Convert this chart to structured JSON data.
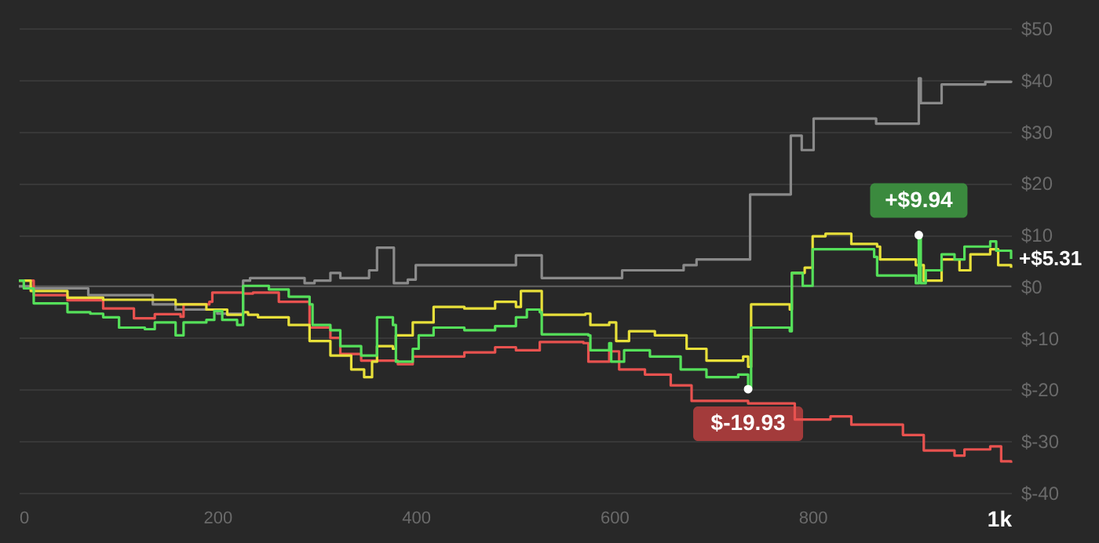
{
  "chart_data": {
    "type": "step",
    "xlim": [
      0,
      1000
    ],
    "ylim": [
      -40,
      50
    ],
    "xticks": [
      0,
      200,
      400,
      600,
      800,
      {
        "value": 1000,
        "label": "1k"
      }
    ],
    "yticks": [
      {
        "value": -40,
        "label": "$-40"
      },
      {
        "value": -30,
        "label": "$-30"
      },
      {
        "value": -20,
        "label": "$-20"
      },
      {
        "value": -10,
        "label": "$-10"
      },
      {
        "value": 0,
        "label": "$0"
      },
      {
        "value": 10,
        "label": "$10"
      },
      {
        "value": 20,
        "label": "$20"
      },
      {
        "value": 30,
        "label": "$30"
      },
      {
        "value": 40,
        "label": "$40"
      },
      {
        "value": 50,
        "label": "$50"
      }
    ],
    "grid": "y",
    "marker": "none",
    "line_style": "solid",
    "ref_lines": [
      {
        "axis": "y",
        "value": 0,
        "color": "#5a5a5a"
      }
    ],
    "series": [
      {
        "color": "#8a8a8a",
        "x": [
          0,
          12,
          70,
          135,
          158,
          200,
          226,
          233,
          288,
          298,
          314,
          324,
          353,
          361,
          378,
          392,
          400,
          501,
          527,
          608,
          670,
          683,
          737,
          778,
          789,
          801,
          864,
          907,
          909,
          930,
          974,
          1000
        ],
        "values": [
          0,
          -0.4,
          -1.7,
          -3.5,
          -4.5,
          -5.3,
          1.1,
          1.6,
          0.6,
          1.1,
          2.6,
          1.6,
          3.1,
          7.5,
          0.6,
          1.3,
          4.1,
          6.0,
          1.6,
          3.1,
          4.1,
          5.2,
          17.8,
          29.2,
          26.4,
          32.5,
          31.5,
          40.3,
          35.5,
          39.1,
          39.6,
          39.8
        ]
      },
      {
        "color": "#e8524f",
        "x": [
          0,
          15,
          49,
          85,
          116,
          137,
          163,
          166,
          192,
          195,
          226,
          236,
          262,
          293,
          314,
          324,
          345,
          382,
          397,
          449,
          480,
          501,
          525,
          569,
          574,
          595,
          605,
          631,
          657,
          678,
          735,
          782,
          818,
          839,
          891,
          912,
          943,
          953,
          979,
          990,
          1000
        ],
        "values": [
          1.1,
          -1.7,
          -2.7,
          -4.3,
          -6.2,
          -5.4,
          -5.9,
          -3.5,
          -3,
          -1.2,
          -1.4,
          -1.2,
          -3,
          -8,
          -10,
          -13.1,
          -14.4,
          -15.1,
          -13.6,
          -12.8,
          -11.8,
          -12.4,
          -10.8,
          -11,
          -14.6,
          -12.6,
          -16.1,
          -17.1,
          -19.2,
          -22.2,
          -22.7,
          -25.8,
          -25.2,
          -26.8,
          -28.8,
          -31.8,
          -32.8,
          -31.6,
          -31,
          -33.9,
          -34.2
        ]
      },
      {
        "color": "#e8e03a",
        "x": [
          0,
          12,
          49,
          85,
          158,
          189,
          210,
          226,
          231,
          241,
          272,
          293,
          314,
          335,
          348,
          356,
          361,
          377,
          380,
          397,
          418,
          449,
          480,
          501,
          506,
          522,
          527,
          571,
          576,
          595,
          602,
          615,
          641,
          673,
          693,
          730,
          735,
          738,
          777,
          779,
          792,
          800,
          813,
          839,
          865,
          868,
          904,
          912,
          930,
          948,
          959,
          979,
          987,
          1000
        ],
        "values": [
          1.1,
          -0.9,
          -2.2,
          -2.6,
          -3.5,
          -4.5,
          -5.5,
          -5,
          -5.5,
          -6,
          -7.5,
          -10.6,
          -13.4,
          -16.1,
          -17.6,
          -14.6,
          -11.6,
          -12.1,
          -9.5,
          -7,
          -4,
          -4.3,
          -3,
          -4,
          -0.9,
          -0.9,
          -5.5,
          -5.3,
          -7.5,
          -7,
          -10.6,
          -8.7,
          -9.5,
          -12.1,
          -14.4,
          -13.6,
          -15.6,
          -3.5,
          -4.5,
          2.6,
          3.6,
          9.7,
          10.2,
          8.2,
          7.7,
          5.2,
          4.1,
          1.1,
          5.2,
          3.1,
          6.2,
          7.2,
          4.1,
          3.6
        ]
      },
      {
        "color": "#55e05a",
        "x": [
          0,
          5,
          15,
          49,
          72,
          85,
          101,
          127,
          137,
          158,
          166,
          189,
          197,
          205,
          220,
          226,
          252,
          272,
          293,
          296,
          314,
          324,
          345,
          361,
          377,
          380,
          397,
          403,
          418,
          449,
          480,
          501,
          512,
          525,
          527,
          574,
          576,
          595,
          597,
          610,
          636,
          667,
          693,
          725,
          735,
          738,
          777,
          779,
          790,
          800,
          818,
          862,
          865,
          904,
          907,
          909,
          914,
          930,
          943,
          953,
          979,
          985,
          1000
        ],
        "values": [
          1.1,
          -0.4,
          -3.3,
          -5,
          -5.3,
          -6,
          -8,
          -8.3,
          -7,
          -9.5,
          -7,
          -6.5,
          -4.8,
          -6.5,
          -7.5,
          0.1,
          -0.6,
          -2,
          -3.5,
          -7.5,
          -8.5,
          -11.6,
          -13.4,
          -6,
          -7.5,
          -14.6,
          -12.1,
          -9.5,
          -8,
          -8.5,
          -7.7,
          -6,
          -4.5,
          -5,
          -9.3,
          -9.5,
          -12.4,
          -11,
          -14.6,
          -12.4,
          -13.6,
          -16.1,
          -17.6,
          -17.1,
          -19.93,
          -8,
          -8.7,
          2.6,
          0.1,
          7.2,
          7.2,
          5.7,
          2.1,
          0.6,
          9.94,
          0.6,
          3.1,
          6.2,
          5.2,
          7.7,
          8.7,
          6.9,
          5.31
        ]
      }
    ],
    "annotations": [
      {
        "text": "+$9.94",
        "x": 907,
        "y": 9.94
      },
      {
        "text": "$-19.93",
        "x": 735,
        "y": -19.93
      },
      {
        "text": "+$5.31",
        "x": 1000,
        "y": 5.31
      }
    ]
  }
}
